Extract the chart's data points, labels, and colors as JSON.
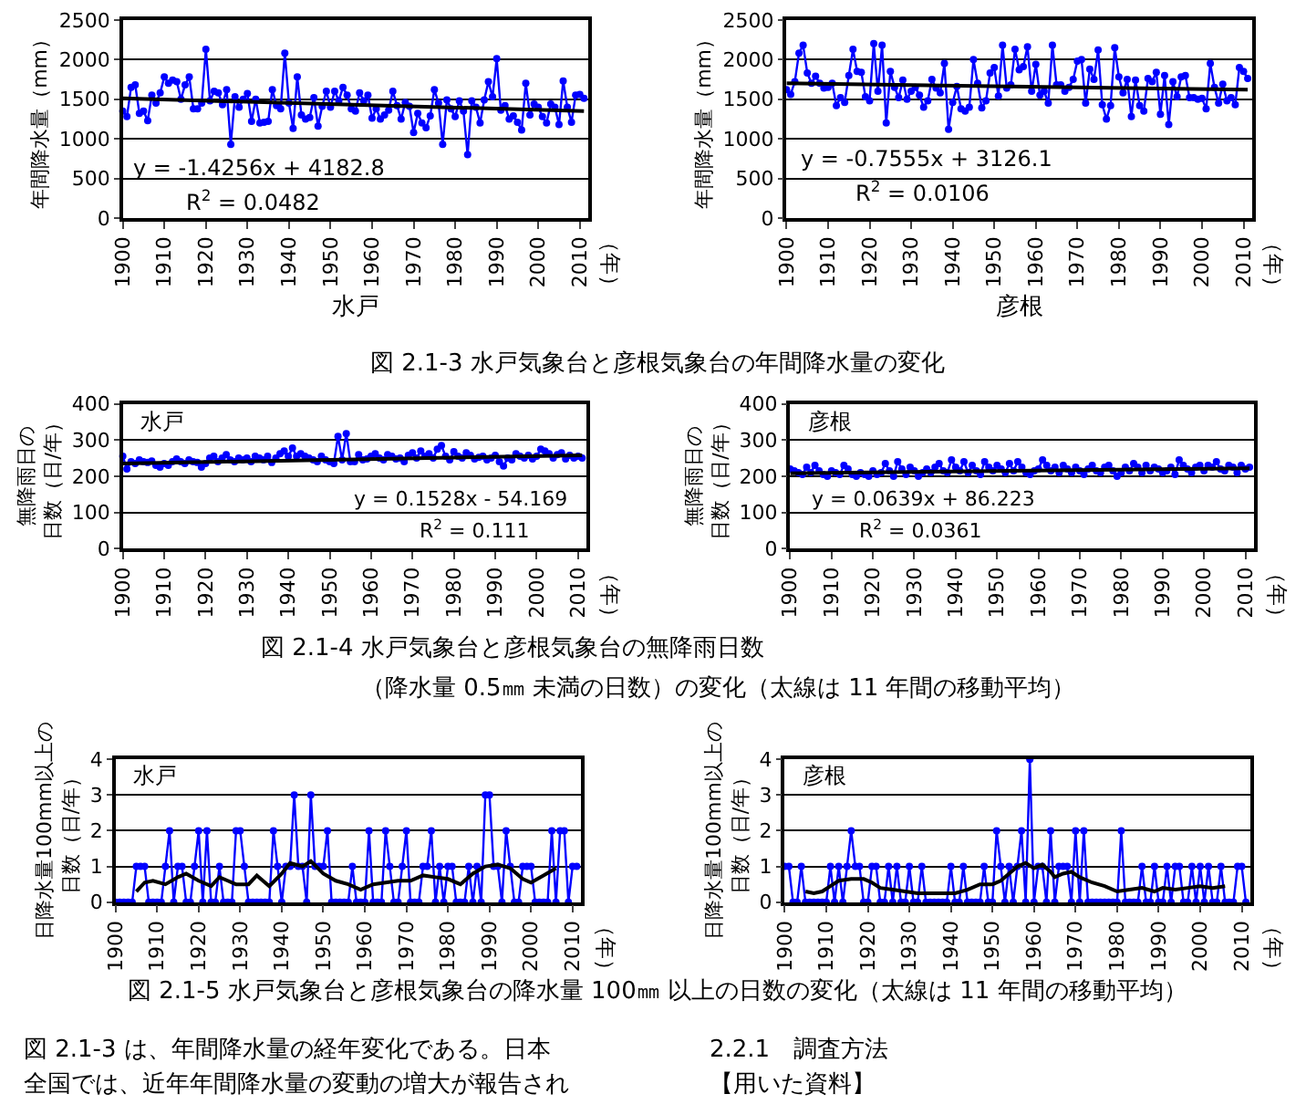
{
  "chart_data": [
    {
      "type": "line",
      "ylabel": "年間降水量（mm）",
      "xlabel": "水戸",
      "xlim": [
        1900,
        2012
      ],
      "ylim": [
        0,
        2500
      ],
      "xticks": [
        1900,
        1910,
        1920,
        1930,
        1940,
        1950,
        1960,
        1970,
        1980,
        1990,
        2000,
        2010
      ],
      "yticks": [
        0,
        500,
        1000,
        1500,
        2000,
        2500
      ],
      "grid": "y",
      "marker": "circle",
      "annotations": [
        "y = -1.4256x + 4182.8",
        "R$^{2}$ = 0.0482",
        "（年）",
        "図 2.1-3 水戸気象台と彦根気象台の年間降水量の変化"
      ],
      "x": [
        1900,
        1901,
        1902,
        1903,
        1904,
        1905,
        1906,
        1907,
        1908,
        1909,
        1910,
        1911,
        1912,
        1913,
        1914,
        1915,
        1916,
        1917,
        1918,
        1919,
        1920,
        1921,
        1922,
        1923,
        1924,
        1925,
        1926,
        1927,
        1928,
        1929,
        1930,
        1931,
        1932,
        1933,
        1934,
        1935,
        1936,
        1937,
        1938,
        1939,
        1940,
        1941,
        1942,
        1943,
        1944,
        1945,
        1946,
        1947,
        1948,
        1949,
        1950,
        1951,
        1952,
        1953,
        1954,
        1955,
        1956,
        1957,
        1958,
        1959,
        1960,
        1961,
        1962,
        1963,
        1964,
        1965,
        1966,
        1967,
        1968,
        1969,
        1970,
        1971,
        1972,
        1973,
        1974,
        1975,
        1976,
        1977,
        1978,
        1979,
        1980,
        1981,
        1982,
        1983,
        1984,
        1985,
        1986,
        1987,
        1988,
        1989,
        1990,
        1991,
        1992,
        1993,
        1994,
        1995,
        1996,
        1997,
        1998,
        1999,
        2000,
        2001,
        2002,
        2003,
        2004,
        2005,
        2006,
        2007,
        2008,
        2009,
        2010,
        2011
      ],
      "series": [
        {
          "color": "#0000ff",
          "values": [
            1350,
            1280,
            1650,
            1680,
            1320,
            1350,
            1230,
            1550,
            1450,
            1580,
            1780,
            1700,
            1740,
            1720,
            1500,
            1680,
            1780,
            1380,
            1380,
            1450,
            2130,
            1480,
            1600,
            1580,
            1430,
            1620,
            930,
            1530,
            1400,
            1500,
            1570,
            1220,
            1500,
            1200,
            1210,
            1220,
            1620,
            1420,
            1380,
            2080,
            1450,
            1130,
            1780,
            1300,
            1250,
            1270,
            1520,
            1160,
            1410,
            1600,
            1400,
            1600,
            1480,
            1650,
            1550,
            1380,
            1350,
            1580,
            1480,
            1550,
            1260,
            1380,
            1250,
            1300,
            1360,
            1600,
            1420,
            1250,
            1460,
            1410,
            1080,
            1320,
            1200,
            1140,
            1290,
            1620,
            1450,
            930,
            1490,
            1380,
            1280,
            1480,
            1350,
            800,
            1480,
            1400,
            1200,
            1490,
            1720,
            1530,
            2010,
            1360,
            1420,
            1250,
            1290,
            1210,
            1110,
            1700,
            1300,
            1440,
            1400,
            1280,
            1200,
            1440,
            1400,
            1180,
            1730,
            1400,
            1210,
            1550,
            1560,
            1510
          ]
        },
        {
          "type": "line",
          "marker": "none",
          "color": "#000000",
          "x": [
            1900,
            2011
          ],
          "values": [
            1510,
            1350
          ]
        }
      ]
    },
    {
      "type": "line",
      "ylabel": "年間降水量（mm）",
      "xlabel": "彦根",
      "xlim": [
        1900,
        2012
      ],
      "ylim": [
        0,
        2500
      ],
      "xticks": [
        1900,
        1910,
        1920,
        1930,
        1940,
        1950,
        1960,
        1970,
        1980,
        1990,
        2000,
        2010
      ],
      "yticks": [
        0,
        500,
        1000,
        1500,
        2000,
        2500
      ],
      "grid": "y",
      "marker": "circle",
      "annotations": [
        "y = -0.7555x + 3126.1",
        "R$^{2}$ = 0.0106",
        "（年）"
      ],
      "x": [
        1900,
        1901,
        1902,
        1903,
        1904,
        1905,
        1906,
        1907,
        1908,
        1909,
        1910,
        1911,
        1912,
        1913,
        1914,
        1915,
        1916,
        1917,
        1918,
        1919,
        1920,
        1921,
        1922,
        1923,
        1924,
        1925,
        1926,
        1927,
        1928,
        1929,
        1930,
        1931,
        1932,
        1933,
        1934,
        1935,
        1936,
        1937,
        1938,
        1939,
        1940,
        1941,
        1942,
        1943,
        1944,
        1945,
        1946,
        1947,
        1948,
        1949,
        1950,
        1951,
        1952,
        1953,
        1954,
        1955,
        1956,
        1957,
        1958,
        1959,
        1960,
        1961,
        1962,
        1963,
        1964,
        1965,
        1966,
        1967,
        1968,
        1969,
        1970,
        1971,
        1972,
        1973,
        1974,
        1975,
        1976,
        1977,
        1978,
        1979,
        1980,
        1981,
        1982,
        1983,
        1984,
        1985,
        1986,
        1987,
        1988,
        1989,
        1990,
        1991,
        1992,
        1993,
        1994,
        1995,
        1996,
        1997,
        1998,
        1999,
        2000,
        2001,
        2002,
        2003,
        2004,
        2005,
        2006,
        2007,
        2008,
        2009,
        2010,
        2011
      ],
      "series": [
        {
          "color": "#0000ff",
          "values": [
            1620,
            1560,
            1720,
            2080,
            2180,
            1830,
            1700,
            1790,
            1700,
            1640,
            1650,
            1700,
            1420,
            1520,
            1460,
            1800,
            2130,
            1850,
            1840,
            1530,
            1480,
            2200,
            1600,
            2180,
            1200,
            1850,
            1650,
            1520,
            1740,
            1500,
            1600,
            1650,
            1550,
            1400,
            1480,
            1750,
            1640,
            1580,
            1950,
            1120,
            1460,
            1660,
            1380,
            1350,
            1400,
            2000,
            1700,
            1390,
            1480,
            1830,
            1900,
            1540,
            2180,
            1640,
            1680,
            2130,
            1870,
            1910,
            2160,
            1600,
            1940,
            1550,
            1600,
            1450,
            2180,
            1680,
            1680,
            1600,
            1650,
            1750,
            1980,
            2000,
            1450,
            1880,
            1750,
            2120,
            1430,
            1250,
            1420,
            2150,
            1780,
            1580,
            1750,
            1280,
            1740,
            1420,
            1350,
            1760,
            1720,
            1840,
            1310,
            1800,
            1180,
            1720,
            1530,
            1780,
            1800,
            1520,
            1520,
            1500,
            1510,
            1380,
            1950,
            1650,
            1450,
            1690,
            1480,
            1520,
            1430,
            1900,
            1850,
            1760
          ]
        },
        {
          "type": "line",
          "marker": "none",
          "color": "#000000",
          "x": [
            1900,
            2011
          ],
          "values": [
            1700,
            1620
          ]
        }
      ]
    },
    {
      "type": "line",
      "ylabel": "無降雨日の日数（日/年）",
      "xlim": [
        1900,
        2012
      ],
      "ylim": [
        0,
        400
      ],
      "xticks": [
        1900,
        1910,
        1920,
        1930,
        1940,
        1950,
        1960,
        1970,
        1980,
        1990,
        2000,
        2010
      ],
      "yticks": [
        0,
        100,
        200,
        300,
        400
      ],
      "grid": "y",
      "marker": "circle",
      "annotations": [
        "水戸",
        "y = 0.1528x - 54.169",
        "R$^{2}$ = 0.111",
        "（年）",
        "図 2.1-4 水戸気象台と彦根気象台の無降雨日数",
        "（降水量 0.5㎜ 未満の日数）の変化（太線は 11 年間の移動平均）"
      ],
      "x": [
        1900,
        1901,
        1902,
        1903,
        1904,
        1905,
        1906,
        1907,
        1908,
        1909,
        1910,
        1911,
        1912,
        1913,
        1914,
        1915,
        1916,
        1917,
        1918,
        1919,
        1920,
        1921,
        1922,
        1923,
        1924,
        1925,
        1926,
        1927,
        1928,
        1929,
        1930,
        1931,
        1932,
        1933,
        1934,
        1935,
        1936,
        1937,
        1938,
        1939,
        1940,
        1941,
        1942,
        1943,
        1944,
        1945,
        1946,
        1947,
        1948,
        1949,
        1950,
        1951,
        1952,
        1953,
        1954,
        1955,
        1956,
        1957,
        1958,
        1959,
        1960,
        1961,
        1962,
        1963,
        1964,
        1965,
        1966,
        1967,
        1968,
        1969,
        1970,
        1971,
        1972,
        1973,
        1974,
        1975,
        1976,
        1977,
        1978,
        1979,
        1980,
        1981,
        1982,
        1983,
        1984,
        1985,
        1986,
        1987,
        1988,
        1989,
        1990,
        1991,
        1992,
        1993,
        1994,
        1995,
        1996,
        1997,
        1998,
        1999,
        2000,
        2001,
        2002,
        2003,
        2004,
        2005,
        2006,
        2007,
        2008,
        2009,
        2010,
        2011
      ],
      "series": [
        {
          "color": "#0000ff",
          "values": [
            255,
            220,
            240,
            235,
            245,
            240,
            238,
            242,
            230,
            225,
            235,
            230,
            240,
            248,
            240,
            235,
            245,
            240,
            238,
            225,
            235,
            250,
            255,
            240,
            250,
            260,
            245,
            240,
            250,
            245,
            250,
            240,
            255,
            250,
            245,
            255,
            238,
            250,
            262,
            270,
            255,
            278,
            255,
            262,
            255,
            250,
            245,
            240,
            255,
            245,
            240,
            235,
            310,
            245,
            318,
            240,
            240,
            260,
            245,
            248,
            255,
            262,
            250,
            245,
            260,
            255,
            248,
            250,
            240,
            258,
            265,
            250,
            270,
            255,
            262,
            250,
            275,
            285,
            255,
            245,
            268,
            255,
            250,
            265,
            258,
            248,
            252,
            255,
            245,
            250,
            258,
            240,
            228,
            250,
            245,
            262,
            255,
            250,
            258,
            248,
            255,
            275,
            270,
            262,
            250,
            260,
            265,
            248,
            258,
            250,
            255,
            250
          ]
        },
        {
          "type": "line",
          "marker": "none",
          "color": "#000000",
          "x": [
            1900,
            2011
          ],
          "values": [
            235,
            258
          ]
        }
      ]
    },
    {
      "type": "line",
      "ylabel": "無降雨日の日数（日/年）",
      "xlim": [
        1900,
        2012
      ],
      "ylim": [
        0,
        400
      ],
      "xticks": [
        1900,
        1910,
        1920,
        1930,
        1940,
        1950,
        1960,
        1970,
        1980,
        1990,
        2000,
        2010
      ],
      "yticks": [
        0,
        100,
        200,
        300,
        400
      ],
      "grid": "y",
      "marker": "circle",
      "annotations": [
        "彦根",
        "y = 0.0639x + 86.223",
        "R$^{2}$ = 0.0361",
        "（年）"
      ],
      "x": [
        1900,
        1901,
        1902,
        1903,
        1904,
        1905,
        1906,
        1907,
        1908,
        1909,
        1910,
        1911,
        1912,
        1913,
        1914,
        1915,
        1916,
        1917,
        1918,
        1919,
        1920,
        1921,
        1922,
        1923,
        1924,
        1925,
        1926,
        1927,
        1928,
        1929,
        1930,
        1931,
        1932,
        1933,
        1934,
        1935,
        1936,
        1937,
        1938,
        1939,
        1940,
        1941,
        1942,
        1943,
        1944,
        1945,
        1946,
        1947,
        1948,
        1949,
        1950,
        1951,
        1952,
        1953,
        1954,
        1955,
        1956,
        1957,
        1958,
        1959,
        1960,
        1961,
        1962,
        1963,
        1964,
        1965,
        1966,
        1967,
        1968,
        1969,
        1970,
        1971,
        1972,
        1973,
        1974,
        1975,
        1976,
        1977,
        1978,
        1979,
        1980,
        1981,
        1982,
        1983,
        1984,
        1985,
        1986,
        1987,
        1988,
        1989,
        1990,
        1991,
        1992,
        1993,
        1994,
        1995,
        1996,
        1997,
        1998,
        1999,
        2000,
        2001,
        2002,
        2003,
        2004,
        2005,
        2006,
        2007,
        2008,
        2009,
        2010,
        2011
      ],
      "series": [
        {
          "color": "#0000ff",
          "values": [
            220,
            215,
            210,
            205,
            225,
            210,
            230,
            215,
            205,
            200,
            215,
            210,
            205,
            230,
            220,
            205,
            200,
            210,
            205,
            200,
            215,
            205,
            210,
            235,
            215,
            200,
            240,
            220,
            205,
            225,
            215,
            200,
            210,
            220,
            210,
            225,
            235,
            215,
            210,
            245,
            225,
            215,
            240,
            210,
            230,
            215,
            205,
            240,
            225,
            215,
            230,
            220,
            210,
            235,
            215,
            240,
            225,
            210,
            205,
            215,
            220,
            245,
            230,
            215,
            225,
            210,
            230,
            220,
            210,
            225,
            215,
            205,
            220,
            230,
            215,
            210,
            225,
            230,
            215,
            200,
            210,
            225,
            215,
            235,
            225,
            210,
            230,
            215,
            225,
            220,
            210,
            215,
            225,
            205,
            245,
            230,
            220,
            210,
            225,
            230,
            215,
            230,
            225,
            240,
            220,
            215,
            230,
            225,
            210,
            230,
            220,
            225
          ]
        },
        {
          "type": "line",
          "marker": "none",
          "color": "#000000",
          "x": [
            1900,
            2011
          ],
          "values": [
            208,
            222
          ]
        }
      ]
    },
    {
      "type": "line",
      "ylabel": "日降水量100mm以上の日数（日/年）",
      "xlim": [
        1900,
        2012
      ],
      "ylim": [
        0,
        4
      ],
      "xticks": [
        1900,
        1910,
        1920,
        1930,
        1940,
        1950,
        1960,
        1970,
        1980,
        1990,
        2000,
        2010
      ],
      "yticks": [
        0,
        1,
        2,
        3,
        4
      ],
      "grid": "y",
      "marker": "circle",
      "annotations": [
        "水戸",
        "（年）",
        "図 2.1-5 水戸気象台と彦根気象台の降水量 100㎜ 以上の日数の変化（太線は 11 年間の移動平均）",
        "図 2.1-3 は、年間降水量の経年変化である。日本",
        "全国では、近年年間降水量の変動の増大が報告され"
      ],
      "x": [
        1900,
        1901,
        1902,
        1903,
        1904,
        1905,
        1906,
        1907,
        1908,
        1909,
        1910,
        1911,
        1912,
        1913,
        1914,
        1915,
        1916,
        1917,
        1918,
        1919,
        1920,
        1921,
        1922,
        1923,
        1924,
        1925,
        1926,
        1927,
        1928,
        1929,
        1930,
        1931,
        1932,
        1933,
        1934,
        1935,
        1936,
        1937,
        1938,
        1939,
        1940,
        1941,
        1942,
        1943,
        1944,
        1945,
        1946,
        1947,
        1948,
        1949,
        1950,
        1951,
        1952,
        1953,
        1954,
        1955,
        1956,
        1957,
        1958,
        1959,
        1960,
        1961,
        1962,
        1963,
        1964,
        1965,
        1966,
        1967,
        1968,
        1969,
        1970,
        1971,
        1972,
        1973,
        1974,
        1975,
        1976,
        1977,
        1978,
        1979,
        1980,
        1981,
        1982,
        1983,
        1984,
        1985,
        1986,
        1987,
        1988,
        1989,
        1990,
        1991,
        1992,
        1993,
        1994,
        1995,
        1996,
        1997,
        1998,
        1999,
        2000,
        2001,
        2002,
        2003,
        2004,
        2005,
        2006,
        2007,
        2008,
        2009,
        2010,
        2011
      ],
      "series": [
        {
          "color": "#0000ff",
          "values": [
            0,
            0,
            0,
            0,
            0,
            1,
            1,
            1,
            0,
            0,
            0,
            0,
            1,
            2,
            0,
            1,
            1,
            0,
            0,
            1,
            2,
            0,
            2,
            0,
            0,
            1,
            0,
            0,
            0,
            2,
            2,
            1,
            0,
            0,
            0,
            0,
            0,
            0,
            2,
            1,
            0,
            1,
            1,
            3,
            1,
            1,
            0,
            3,
            1,
            1,
            1,
            2,
            0,
            0,
            0,
            0,
            0,
            1,
            0,
            0,
            0,
            2,
            0,
            0,
            0,
            2,
            1,
            0,
            0,
            1,
            2,
            0,
            0,
            0,
            1,
            1,
            2,
            0,
            1,
            0,
            1,
            1,
            0,
            0,
            0,
            1,
            0,
            1,
            0,
            3,
            3,
            1,
            1,
            0,
            2,
            1,
            0,
            0,
            1,
            1,
            1,
            0,
            0,
            0,
            0,
            2,
            0,
            2,
            2,
            0,
            1,
            1
          ]
        },
        {
          "type": "line",
          "marker": "none",
          "color": "#000000",
          "x": [
            1905,
            1907,
            1909,
            1912,
            1915,
            1917,
            1920,
            1923,
            1925,
            1927,
            1929,
            1932,
            1934,
            1937,
            1940,
            1942,
            1945,
            1947,
            1950,
            1953,
            1956,
            1959,
            1962,
            1965,
            1968,
            1971,
            1974,
            1977,
            1980,
            1983,
            1986,
            1989,
            1992,
            1995,
            1998,
            2000,
            2003,
            2006
          ],
          "values": [
            0.3,
            0.55,
            0.6,
            0.5,
            0.7,
            0.8,
            0.6,
            0.45,
            0.7,
            0.6,
            0.5,
            0.5,
            0.75,
            0.45,
            0.8,
            1.1,
            1.0,
            1.15,
            0.8,
            0.6,
            0.5,
            0.35,
            0.5,
            0.55,
            0.6,
            0.6,
            0.75,
            0.7,
            0.65,
            0.5,
            0.8,
            1.0,
            1.05,
            0.95,
            0.65,
            0.55,
            0.75,
            0.95
          ]
        }
      ]
    },
    {
      "type": "line",
      "ylabel": "日降水量100mm以上の日数（日/年）",
      "xlim": [
        1900,
        2012
      ],
      "ylim": [
        0,
        4
      ],
      "xticks": [
        1900,
        1910,
        1920,
        1930,
        1940,
        1950,
        1960,
        1970,
        1980,
        1990,
        2000,
        2010
      ],
      "yticks": [
        0,
        1,
        2,
        3,
        4
      ],
      "grid": "y",
      "marker": "circle",
      "annotations": [
        "彦根",
        "（年）",
        "2.2.1　調査方法",
        "【用いた資料】"
      ],
      "x": [
        1900,
        1901,
        1902,
        1903,
        1904,
        1905,
        1906,
        1907,
        1908,
        1909,
        1910,
        1911,
        1912,
        1913,
        1914,
        1915,
        1916,
        1917,
        1918,
        1919,
        1920,
        1921,
        1922,
        1923,
        1924,
        1925,
        1926,
        1927,
        1928,
        1929,
        1930,
        1931,
        1932,
        1933,
        1934,
        1935,
        1936,
        1937,
        1938,
        1939,
        1940,
        1941,
        1942,
        1943,
        1944,
        1945,
        1946,
        1947,
        1948,
        1949,
        1950,
        1951,
        1952,
        1953,
        1954,
        1955,
        1956,
        1957,
        1958,
        1959,
        1960,
        1961,
        1962,
        1963,
        1964,
        1965,
        1966,
        1967,
        1968,
        1969,
        1970,
        1971,
        1972,
        1973,
        1974,
        1975,
        1976,
        1977,
        1978,
        1979,
        1980,
        1981,
        1982,
        1983,
        1984,
        1985,
        1986,
        1987,
        1988,
        1989,
        1990,
        1991,
        1992,
        1993,
        1994,
        1995,
        1996,
        1997,
        1998,
        1999,
        2000,
        2001,
        2002,
        2003,
        2004,
        2005,
        2006,
        2007,
        2008,
        2009,
        2010,
        2011
      ],
      "series": [
        {
          "color": "#0000ff",
          "values": [
            1,
            1,
            0,
            0,
            1,
            0,
            0,
            0,
            0,
            0,
            0,
            1,
            0,
            1,
            0,
            1,
            2,
            1,
            1,
            0,
            0,
            1,
            1,
            0,
            0,
            1,
            0,
            1,
            0,
            0,
            1,
            0,
            0,
            1,
            0,
            0,
            0,
            0,
            0,
            0,
            1,
            0,
            0,
            1,
            0,
            0,
            0,
            0,
            1,
            0,
            0,
            2,
            1,
            0,
            1,
            0,
            1,
            2,
            0,
            4,
            0,
            1,
            1,
            0,
            2,
            0,
            1,
            1,
            1,
            0,
            2,
            0,
            2,
            0,
            0,
            0,
            0,
            0,
            0,
            0,
            0,
            2,
            0,
            0,
            0,
            0,
            1,
            0,
            0,
            1,
            0,
            0,
            1,
            0,
            1,
            1,
            0,
            0,
            1,
            0,
            1,
            0,
            1,
            0,
            0,
            1,
            0,
            0,
            0,
            1,
            1,
            0
          ]
        },
        {
          "type": "line",
          "marker": "none",
          "color": "#000000",
          "x": [
            1905,
            1907,
            1909,
            1911,
            1913,
            1916,
            1919,
            1921,
            1923,
            1926,
            1929,
            1932,
            1935,
            1938,
            1941,
            1944,
            1947,
            1950,
            1952,
            1954,
            1956,
            1958,
            1960,
            1962,
            1964,
            1965,
            1967,
            1969,
            1971,
            1974,
            1977,
            1980,
            1983,
            1986,
            1989,
            1991,
            1994,
            1997,
            2000,
            2003,
            2006
          ],
          "values": [
            0.3,
            0.25,
            0.3,
            0.45,
            0.6,
            0.65,
            0.65,
            0.55,
            0.4,
            0.35,
            0.3,
            0.25,
            0.25,
            0.25,
            0.25,
            0.35,
            0.5,
            0.5,
            0.6,
            0.8,
            1.0,
            1.1,
            0.95,
            1.05,
            0.85,
            0.7,
            0.8,
            0.85,
            0.7,
            0.55,
            0.45,
            0.3,
            0.35,
            0.4,
            0.3,
            0.4,
            0.35,
            0.4,
            0.45,
            0.4,
            0.45
          ]
        }
      ]
    }
  ]
}
